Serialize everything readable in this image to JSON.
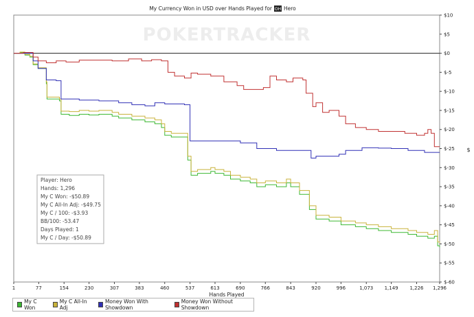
{
  "chart_data": {
    "type": "line",
    "title_prefix": "My Currency Won in USD over Hands Played for",
    "title_badge": "OH",
    "title_player": "Hero",
    "watermark": "POKERTRACKER",
    "xlabel": "Hands Played",
    "ylabel": "$",
    "xlim": [
      1,
      1296
    ],
    "ylim": [
      -60,
      10
    ],
    "x_ticks": [
      1,
      77,
      154,
      230,
      307,
      383,
      460,
      537,
      613,
      690,
      766,
      843,
      920,
      996,
      1073,
      1149,
      1226,
      1296
    ],
    "x_tick_labels": [
      "1",
      "77",
      "154",
      "230",
      "307",
      "383",
      "460",
      "537",
      "613",
      "690",
      "766",
      "843",
      "920",
      "996",
      "1,073",
      "1,149",
      "1,226",
      "1,296"
    ],
    "y_ticks": [
      10,
      5,
      0,
      -5,
      -10,
      -15,
      -20,
      -25,
      -30,
      -35,
      -40,
      -45,
      -50,
      -55,
      -60
    ],
    "y_tick_labels": [
      "$10",
      "$5",
      "$0",
      "$-5",
      "$-10",
      "$-15",
      "$-20",
      "$-25",
      "$-30",
      "$-35",
      "$-40",
      "$-45",
      "$-50",
      "$-55",
      "$-60"
    ],
    "grid": false,
    "legend_position": "bottom",
    "series": [
      {
        "name": "My C Won",
        "color": "#3cb832",
        "points": [
          [
            1,
            0
          ],
          [
            20,
            0.2
          ],
          [
            35,
            -0.5
          ],
          [
            50,
            -1
          ],
          [
            60,
            -3
          ],
          [
            75,
            -4
          ],
          [
            100,
            -8
          ],
          [
            102,
            -12
          ],
          [
            140,
            -12.5
          ],
          [
            145,
            -16
          ],
          [
            170,
            -16.3
          ],
          [
            200,
            -16
          ],
          [
            230,
            -16.2
          ],
          [
            260,
            -16
          ],
          [
            300,
            -16.5
          ],
          [
            320,
            -17
          ],
          [
            360,
            -17.5
          ],
          [
            400,
            -18
          ],
          [
            430,
            -18.5
          ],
          [
            450,
            -19.5
          ],
          [
            460,
            -21.5
          ],
          [
            480,
            -22
          ],
          [
            500,
            -22
          ],
          [
            520,
            -22
          ],
          [
            530,
            -28
          ],
          [
            540,
            -32
          ],
          [
            560,
            -31.5
          ],
          [
            600,
            -31
          ],
          [
            613,
            -31.5
          ],
          [
            640,
            -32
          ],
          [
            660,
            -33
          ],
          [
            690,
            -33.5
          ],
          [
            720,
            -34
          ],
          [
            740,
            -35
          ],
          [
            766,
            -34.5
          ],
          [
            800,
            -35
          ],
          [
            830,
            -34
          ],
          [
            843,
            -35
          ],
          [
            870,
            -37
          ],
          [
            900,
            -41
          ],
          [
            920,
            -43.5
          ],
          [
            960,
            -44
          ],
          [
            996,
            -45
          ],
          [
            1040,
            -45.5
          ],
          [
            1073,
            -46
          ],
          [
            1110,
            -46.5
          ],
          [
            1149,
            -47
          ],
          [
            1200,
            -47.5
          ],
          [
            1226,
            -48
          ],
          [
            1260,
            -48.5
          ],
          [
            1280,
            -48
          ],
          [
            1290,
            -50.5
          ],
          [
            1296,
            -50.9
          ]
        ]
      },
      {
        "name": "My C All-In Adj",
        "color": "#c8b23a",
        "points": [
          [
            1,
            0
          ],
          [
            20,
            0.3
          ],
          [
            35,
            -0.3
          ],
          [
            50,
            -0.8
          ],
          [
            60,
            -2.8
          ],
          [
            75,
            -3.8
          ],
          [
            100,
            -7.5
          ],
          [
            102,
            -11.5
          ],
          [
            140,
            -12
          ],
          [
            145,
            -15.2
          ],
          [
            170,
            -15.3
          ],
          [
            200,
            -15
          ],
          [
            230,
            -15.2
          ],
          [
            260,
            -15
          ],
          [
            300,
            -15.5
          ],
          [
            320,
            -16
          ],
          [
            360,
            -16.5
          ],
          [
            400,
            -17
          ],
          [
            430,
            -17.5
          ],
          [
            450,
            -18.5
          ],
          [
            460,
            -20.5
          ],
          [
            480,
            -21
          ],
          [
            500,
            -21
          ],
          [
            520,
            -21
          ],
          [
            530,
            -27
          ],
          [
            540,
            -31
          ],
          [
            560,
            -30.5
          ],
          [
            600,
            -30
          ],
          [
            613,
            -30.5
          ],
          [
            640,
            -31
          ],
          [
            660,
            -32
          ],
          [
            690,
            -32.5
          ],
          [
            720,
            -33
          ],
          [
            740,
            -34
          ],
          [
            766,
            -33.5
          ],
          [
            800,
            -34
          ],
          [
            830,
            -33
          ],
          [
            843,
            -34
          ],
          [
            870,
            -36
          ],
          [
            900,
            -40
          ],
          [
            920,
            -42.5
          ],
          [
            960,
            -43
          ],
          [
            996,
            -44
          ],
          [
            1040,
            -44.5
          ],
          [
            1073,
            -45
          ],
          [
            1110,
            -45.5
          ],
          [
            1149,
            -46
          ],
          [
            1200,
            -46.5
          ],
          [
            1226,
            -47
          ],
          [
            1260,
            -47.5
          ],
          [
            1280,
            -46.5
          ],
          [
            1290,
            -49.5
          ],
          [
            1296,
            -49.8
          ]
        ]
      },
      {
        "name": "Money Won With Showdown",
        "color": "#2f2fb5",
        "points": [
          [
            1,
            0
          ],
          [
            30,
            0
          ],
          [
            60,
            -2
          ],
          [
            75,
            -4
          ],
          [
            100,
            -7
          ],
          [
            130,
            -7.2
          ],
          [
            145,
            -12
          ],
          [
            200,
            -12.3
          ],
          [
            260,
            -12.5
          ],
          [
            320,
            -13
          ],
          [
            360,
            -13.5
          ],
          [
            400,
            -13.8
          ],
          [
            430,
            -13
          ],
          [
            460,
            -13.3
          ],
          [
            520,
            -13.5
          ],
          [
            537,
            -23
          ],
          [
            600,
            -23
          ],
          [
            690,
            -23.5
          ],
          [
            740,
            -25
          ],
          [
            800,
            -25.5
          ],
          [
            880,
            -25.5
          ],
          [
            905,
            -27.5
          ],
          [
            920,
            -27
          ],
          [
            960,
            -27
          ],
          [
            990,
            -26.5
          ],
          [
            1010,
            -25.5
          ],
          [
            1060,
            -24.8
          ],
          [
            1110,
            -24.9
          ],
          [
            1149,
            -25
          ],
          [
            1200,
            -25.5
          ],
          [
            1250,
            -26
          ],
          [
            1296,
            -26
          ]
        ]
      },
      {
        "name": "Money Won Without Showdown",
        "color": "#c03030",
        "points": [
          [
            1,
            0
          ],
          [
            30,
            0.2
          ],
          [
            60,
            -1
          ],
          [
            75,
            -2
          ],
          [
            100,
            -2.5
          ],
          [
            130,
            -2
          ],
          [
            160,
            -2.3
          ],
          [
            200,
            -1.8
          ],
          [
            250,
            -1.8
          ],
          [
            300,
            -2
          ],
          [
            350,
            -1.5
          ],
          [
            390,
            -2
          ],
          [
            420,
            -1.7
          ],
          [
            450,
            -2
          ],
          [
            470,
            -5
          ],
          [
            490,
            -6
          ],
          [
            520,
            -6.5
          ],
          [
            540,
            -5.2
          ],
          [
            560,
            -5.5
          ],
          [
            600,
            -6
          ],
          [
            640,
            -7.5
          ],
          [
            680,
            -8.5
          ],
          [
            700,
            -9.5
          ],
          [
            730,
            -9.5
          ],
          [
            760,
            -9
          ],
          [
            780,
            -6
          ],
          [
            800,
            -7
          ],
          [
            830,
            -7.5
          ],
          [
            850,
            -6.5
          ],
          [
            880,
            -7
          ],
          [
            890,
            -10.5
          ],
          [
            910,
            -14
          ],
          [
            920,
            -13
          ],
          [
            940,
            -15.5
          ],
          [
            960,
            -15
          ],
          [
            990,
            -16.5
          ],
          [
            1010,
            -18.5
          ],
          [
            1040,
            -19.5
          ],
          [
            1073,
            -20
          ],
          [
            1110,
            -20.5
          ],
          [
            1149,
            -20.5
          ],
          [
            1190,
            -21
          ],
          [
            1226,
            -21.5
          ],
          [
            1250,
            -21
          ],
          [
            1260,
            -20
          ],
          [
            1270,
            -21
          ],
          [
            1280,
            -24.5
          ],
          [
            1296,
            -24.5
          ]
        ]
      }
    ]
  },
  "stats": {
    "player": "Player: Hero",
    "hands": "Hands: 1,296",
    "won": "My C Won: -$50.89",
    "allin": "My C All-In Adj: -$49.75",
    "per100": "My C / 100: -$3.93",
    "bb100": "BB/100: -53.47",
    "days": "Days Played: 1",
    "perday": "My C / Day: -$50.89"
  },
  "legend": [
    {
      "label": "My C Won",
      "color": "#3cb832"
    },
    {
      "label": "My C All-In Adj",
      "color": "#c8b23a"
    },
    {
      "label": "Money Won With Showdown",
      "color": "#2f2fb5"
    },
    {
      "label": "Money Won Without Showdown",
      "color": "#c03030"
    }
  ]
}
